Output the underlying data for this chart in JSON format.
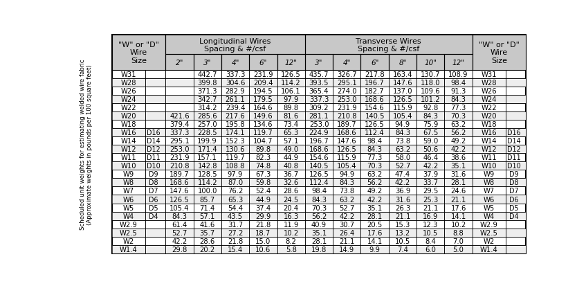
{
  "side_label": "Scheduled unit weights for estimating welded wire fabric\n(Approximate weights in pounds per 100 square feet)",
  "rows": [
    [
      "W31",
      "",
      "",
      "442.7",
      "337.3",
      "231.9",
      "126.5",
      "435.7",
      "326.7",
      "217.8",
      "163.4",
      "130.7",
      "108.9",
      "W31",
      ""
    ],
    [
      "W28",
      "",
      "",
      "399.8",
      "304.6",
      "209.4",
      "114.2",
      "393.5",
      "295.1",
      "196.7",
      "147.6",
      "118.0",
      "98.4",
      "W28",
      ""
    ],
    [
      "W26",
      "",
      "",
      "371.3",
      "282.9",
      "194.5",
      "106.1",
      "365.4",
      "274.0",
      "182.7",
      "137.0",
      "109.6",
      "91.3",
      "W26",
      ""
    ],
    [
      "W24",
      "",
      "",
      "342.7",
      "261.1",
      "179.5",
      "97.9",
      "337.3",
      "253.0",
      "168.6",
      "126.5",
      "101.2",
      "84.3",
      "W24",
      ""
    ],
    [
      "W22",
      "",
      "",
      "314.2",
      "239.4",
      "164.6",
      "89.8",
      "309.2",
      "231.9",
      "154.6",
      "115.9",
      "92.8",
      "77.3",
      "W22",
      ""
    ],
    [
      "W20",
      "",
      "421.6",
      "285.6",
      "217.6",
      "149.6",
      "81.6",
      "281.1",
      "210.8",
      "140.5",
      "105.4",
      "84.3",
      "70.3",
      "W20",
      ""
    ],
    [
      "W18",
      "",
      "379.4",
      "257.0",
      "195.8",
      "134.6",
      "73.4",
      "253.0",
      "189.7",
      "126.5",
      "94.9",
      "75.9",
      "63.2",
      "W18",
      ""
    ],
    [
      "W16",
      "D16",
      "337.3",
      "228.5",
      "174.1",
      "119.7",
      "65.3",
      "224.9",
      "168.6",
      "112.4",
      "84.3",
      "67.5",
      "56.2",
      "W16",
      "D16"
    ],
    [
      "W14",
      "D14",
      "295.1",
      "199.9",
      "152.3",
      "104.7",
      "57.1",
      "196.7",
      "147.6",
      "98.4",
      "73.8",
      "59.0",
      "49.2",
      "W14",
      "D14"
    ],
    [
      "W12",
      "D12",
      "253.0",
      "171.4",
      "130.6",
      "89.8",
      "49.0",
      "168.6",
      "126.5",
      "84.3",
      "63.2",
      "50.6",
      "42.2",
      "W12",
      "D12"
    ],
    [
      "W11",
      "D11",
      "231.9",
      "157.1",
      "119.7",
      "82.3",
      "44.9",
      "154.6",
      "115.9",
      "77.3",
      "58.0",
      "46.4",
      "38.6",
      "W11",
      "D11"
    ],
    [
      "W10",
      "D10",
      "210.8",
      "142.8",
      "108.8",
      "74.8",
      "40.8",
      "140.5",
      "105.4",
      "70.3",
      "52.7",
      "42.2",
      "35.1",
      "W10",
      "D10"
    ],
    [
      "W9",
      "D9",
      "189.7",
      "128.5",
      "97.9",
      "67.3",
      "36.7",
      "126.5",
      "94.9",
      "63.2",
      "47.4",
      "37.9",
      "31.6",
      "W9",
      "D9"
    ],
    [
      "W8",
      "D8",
      "168.6",
      "114.2",
      "87.0",
      "59.8",
      "32.6",
      "112.4",
      "84.3",
      "56.2",
      "42.2",
      "33.7",
      "28.1",
      "W8",
      "D8"
    ],
    [
      "W7",
      "D7",
      "147.6",
      "100.0",
      "76.2",
      "52.4",
      "28.6",
      "98.4",
      "73.8",
      "49.2",
      "36.9",
      "29.5",
      "24.6",
      "W7",
      "D7"
    ],
    [
      "W6",
      "D6",
      "126.5",
      "85.7",
      "65.3",
      "44.9",
      "24.5",
      "84.3",
      "63.2",
      "42.2",
      "31.6",
      "25.3",
      "21.1",
      "W6",
      "D6"
    ],
    [
      "W5",
      "D5",
      "105.4",
      "71.4",
      "54.4",
      "37.4",
      "20.4",
      "70.3",
      "52.7",
      "35.1",
      "26.3",
      "21.1",
      "17.6",
      "W5",
      "D5"
    ],
    [
      "W4",
      "D4",
      "84.3",
      "57.1",
      "43.5",
      "29.9",
      "16.3",
      "56.2",
      "42.2",
      "28.1",
      "21.1",
      "16.9",
      "14.1",
      "W4",
      "D4"
    ],
    [
      "W2.9",
      "",
      "61.4",
      "41.6",
      "31.7",
      "21.8",
      "11.9",
      "40.9",
      "30.7",
      "20.5",
      "15.3",
      "12.3",
      "10.2",
      "W2.9",
      ""
    ],
    [
      "W2.5",
      "",
      "52.7",
      "35.7",
      "27.2",
      "18.7",
      "10.2",
      "35.1",
      "26.4",
      "17.6",
      "13.2",
      "10.5",
      "8.8",
      "W2.5",
      ""
    ],
    [
      "W2",
      "",
      "42.2",
      "28.6",
      "21.8",
      "15.0",
      "8.2",
      "28.1",
      "21.1",
      "14.1",
      "10.5",
      "8.4",
      "7.0",
      "W2",
      ""
    ],
    [
      "W1.4",
      "",
      "29.8",
      "20.2",
      "15.4",
      "10.6",
      "5.8",
      "19.8",
      "14.9",
      "9.9",
      "7.4",
      "6.0",
      "5.0",
      "W1.4",
      ""
    ]
  ],
  "bg_color": "#ffffff",
  "header_bg": "#c8c8c8",
  "font_size_data": 7.2,
  "font_size_header": 8.0,
  "font_size_sub": 7.5,
  "font_size_side": 6.2
}
